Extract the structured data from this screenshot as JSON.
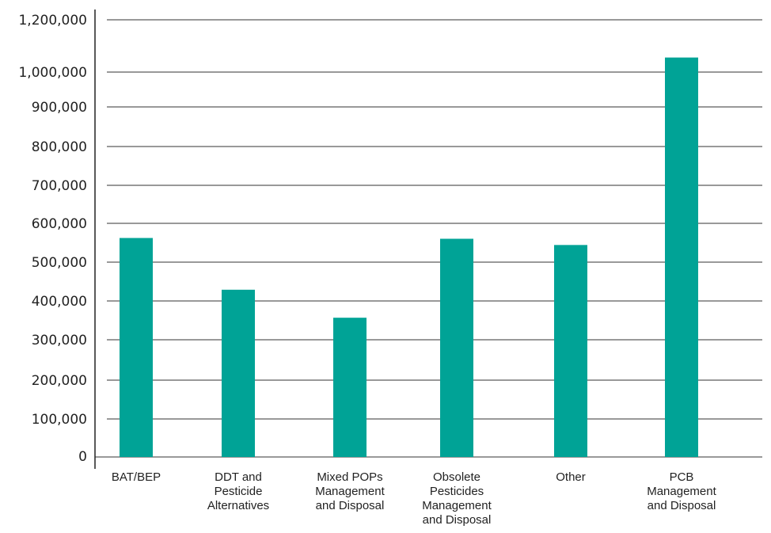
{
  "chart_data": {
    "type": "bar",
    "title": "",
    "xlabel": "",
    "ylabel": "",
    "grid": true,
    "legend": "none",
    "categories": [
      "BAT/BEP",
      "DDT and Pesticide Alternatives",
      "Mixed POPs Management and Disposal",
      "Obsolete Pesticides Management and Disposal",
      "Other",
      "PCB Management and Disposal"
    ],
    "category_lines": [
      [
        "BAT/BEP"
      ],
      [
        "DDT and",
        "Pesticide",
        "Alternatives"
      ],
      [
        "Mixed POPs",
        "Management",
        "and Disposal"
      ],
      [
        "Obsolete",
        "Pesticides",
        "Management",
        "and Disposal"
      ],
      [
        "Other"
      ],
      [
        "PCB",
        "Management",
        "and Disposal"
      ]
    ],
    "values": [
      563000,
      430000,
      358000,
      561000,
      545000,
      1027000
    ],
    "ytick_labels": [
      "0",
      "100,000",
      "200,000",
      "300,000",
      "400,000",
      "500,000",
      "600,000",
      "700,000",
      "800,000",
      "900,000",
      "1,000,000",
      "1,200,000"
    ],
    "ylim": [
      0,
      1200000
    ],
    "bar_color": "#00A396"
  }
}
